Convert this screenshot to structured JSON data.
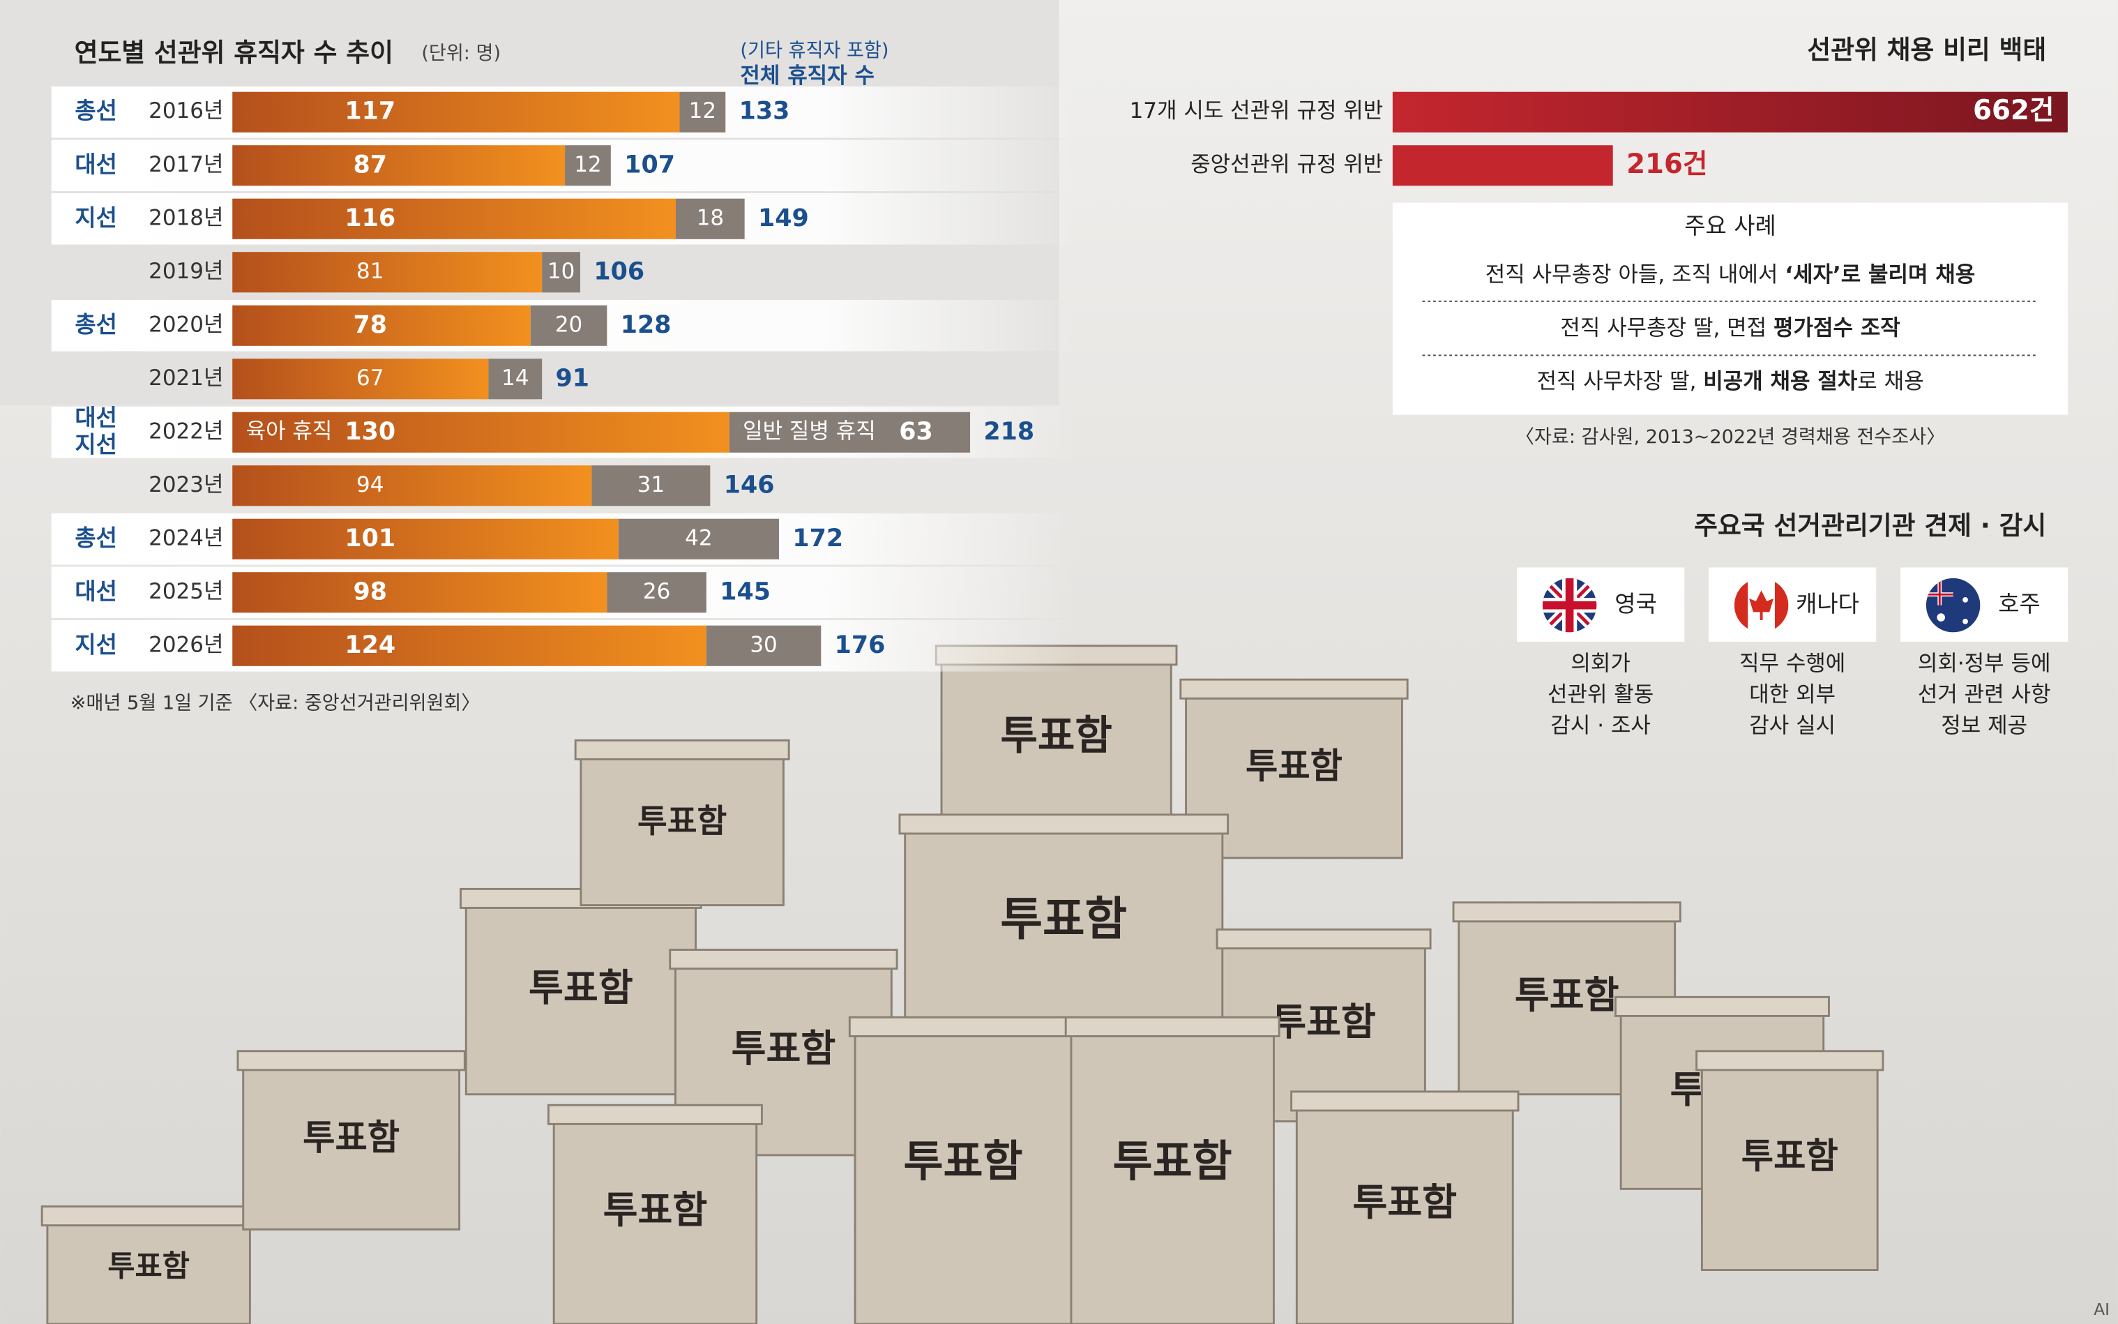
{
  "chart_data": [
    {
      "type": "bar",
      "orientation": "horizontal",
      "stacked": true,
      "title": "연도별 선관위 휴직자 수 추이",
      "subtitle": "(단위: 명)",
      "categories": [
        "2016년",
        "2017년",
        "2018년",
        "2019년",
        "2020년",
        "2021년",
        "2022년",
        "2023년",
        "2024년",
        "2025년",
        "2026년"
      ],
      "election_labels": [
        "총선",
        "대선",
        "지선",
        null,
        "총선",
        null,
        [
          "대선",
          "지선"
        ],
        null,
        "총선",
        "대선",
        "지선"
      ],
      "series": [
        {
          "name": "육아 휴직",
          "color": "#ee8a1f",
          "values": [
            117,
            87,
            116,
            81,
            78,
            67,
            130,
            94,
            101,
            98,
            124
          ]
        },
        {
          "name": "일반 질병 휴직",
          "color": "#877d77",
          "values": [
            12,
            12,
            18,
            10,
            20,
            14,
            63,
            31,
            42,
            26,
            30
          ]
        }
      ],
      "legend_row": 6,
      "totals": {
        "name": "전체 휴직자 수",
        "note": "(기타 휴직자 포함)",
        "color": "#1b4f8e",
        "values": [
          133,
          107,
          149,
          106,
          128,
          91,
          218,
          146,
          172,
          145,
          176
        ]
      },
      "footnote": "※매년 5월 1일 기준 〈자료: 중앙선거관리위원회〉"
    },
    {
      "type": "bar",
      "orientation": "horizontal",
      "title": "선관위 채용 비리 백태",
      "categories": [
        "17개 시도 선관위 규정 위반",
        "중앙선관위 규정 위반"
      ],
      "values": [
        662,
        216
      ],
      "value_labels": [
        "662건",
        "216건"
      ],
      "colors": [
        "#8e1b24",
        "#c4262e"
      ],
      "source": "〈자료: 감사원, 2013~2022년 경력채용 전수조사〉"
    }
  ],
  "cases": {
    "title": "주요 사례",
    "items": [
      {
        "parts": [
          "전직 사무총장 아들, 조직 내에서 ",
          "‘세자’로 불리며 채용"
        ],
        "bold": [
          false,
          true
        ]
      },
      {
        "parts": [
          "전직 사무총장 딸, 면접 ",
          "평가점수 조작"
        ],
        "bold": [
          false,
          true
        ]
      },
      {
        "parts": [
          "전직 사무차장 딸, ",
          "비공개 채용 절차",
          "로 채용"
        ],
        "bold": [
          false,
          true,
          false
        ]
      }
    ]
  },
  "countries": {
    "title": "주요국 선거관리기관 견제 · 감시",
    "items": [
      {
        "name": "영국",
        "lines": [
          "의회가",
          "선관위 활동",
          "감시 · 조사"
        ]
      },
      {
        "name": "캐나다",
        "lines": [
          "직무 수행에",
          "대한 외부",
          "감사 실시"
        ]
      },
      {
        "name": "호주",
        "lines": [
          "의회·정부 등에",
          "선거 관련 사항",
          "정보 제공"
        ]
      }
    ]
  },
  "illustration": {
    "box_label": "투표함"
  },
  "ai_mark": "AI"
}
